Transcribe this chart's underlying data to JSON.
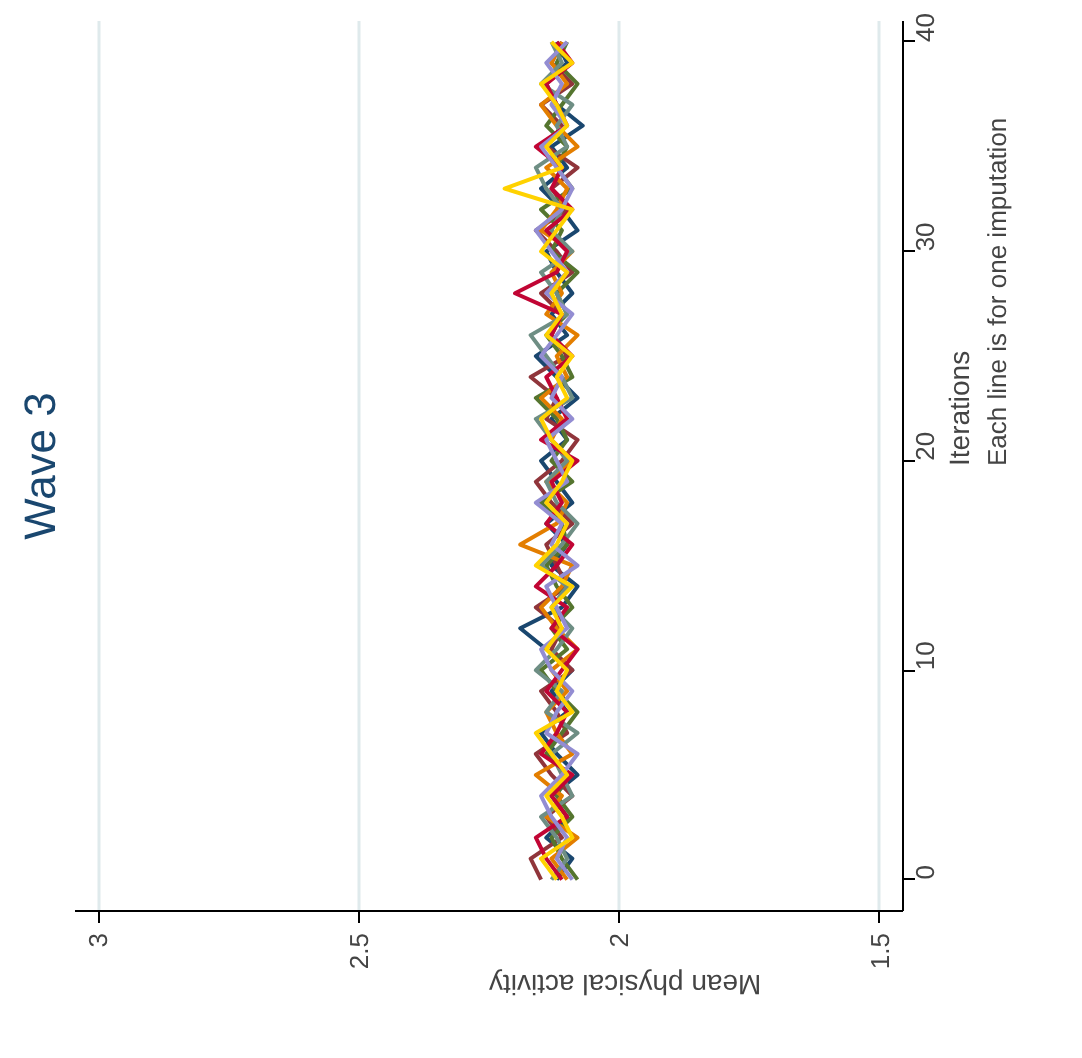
{
  "chart_data": {
    "type": "line",
    "title": "Wave 3",
    "xlabel": "Mean physical activity",
    "ylabel": "Iterations",
    "annotations": [
      "Each line is for one imputation"
    ],
    "xlim": [
      3.045,
      1.455
    ],
    "ylim": [
      -1.5,
      41
    ],
    "xticks": [
      3,
      2.5,
      2,
      1.5
    ],
    "yticks": [
      0,
      10,
      20,
      30,
      40
    ],
    "grid": "x",
    "series": [
      {
        "color": "#1a476f",
        "x": [
          2.12,
          2.09,
          2.14,
          2.1,
          2.13,
          2.08,
          2.12,
          2.15,
          2.1,
          2.13,
          2.09,
          2.14,
          2.19,
          2.11,
          2.08,
          2.13,
          2.1,
          2.14,
          2.09,
          2.12,
          2.15,
          2.1,
          2.13,
          2.08,
          2.12,
          2.16,
          2.1,
          2.13,
          2.09,
          2.12,
          2.14,
          2.08,
          2.11,
          2.15,
          2.1,
          2.13,
          2.07,
          2.12,
          2.14,
          2.1,
          2.12
        ],
        "values": [
          0,
          1,
          2,
          3,
          4,
          5,
          6,
          7,
          8,
          9,
          10,
          11,
          12,
          13,
          14,
          15,
          16,
          17,
          18,
          19,
          20,
          21,
          22,
          23,
          24,
          25,
          26,
          27,
          28,
          29,
          30,
          31,
          32,
          33,
          34,
          35,
          36,
          37,
          38,
          39,
          40
        ]
      },
      {
        "color": "#90353b",
        "x": [
          2.15,
          2.17,
          2.11,
          2.14,
          2.09,
          2.13,
          2.16,
          2.1,
          2.12,
          2.15,
          2.09,
          2.13,
          2.11,
          2.16,
          2.1,
          2.12,
          2.14,
          2.09,
          2.13,
          2.16,
          2.11,
          2.08,
          2.14,
          2.12,
          2.17,
          2.1,
          2.13,
          2.11,
          2.15,
          2.09,
          2.12,
          2.16,
          2.1,
          2.13,
          2.08,
          2.14,
          2.11,
          2.15,
          2.09,
          2.13,
          2.11
        ],
        "values": [
          0,
          1,
          2,
          3,
          4,
          5,
          6,
          7,
          8,
          9,
          10,
          11,
          12,
          13,
          14,
          15,
          16,
          17,
          18,
          19,
          20,
          21,
          22,
          23,
          24,
          25,
          26,
          27,
          28,
          29,
          30,
          31,
          32,
          33,
          34,
          35,
          36,
          37,
          38,
          39,
          40
        ]
      },
      {
        "color": "#55752f",
        "x": [
          2.08,
          2.11,
          2.13,
          2.09,
          2.12,
          2.1,
          2.14,
          2.11,
          2.08,
          2.12,
          2.15,
          2.1,
          2.13,
          2.09,
          2.12,
          2.14,
          2.1,
          2.11,
          2.15,
          2.09,
          2.13,
          2.1,
          2.12,
          2.16,
          2.09,
          2.11,
          2.14,
          2.1,
          2.12,
          2.08,
          2.13,
          2.11,
          2.15,
          2.09,
          2.12,
          2.1,
          2.14,
          2.11,
          2.08,
          2.12,
          2.1
        ],
        "values": [
          0,
          1,
          2,
          3,
          4,
          5,
          6,
          7,
          8,
          9,
          10,
          11,
          12,
          13,
          14,
          15,
          16,
          17,
          18,
          19,
          20,
          21,
          22,
          23,
          24,
          25,
          26,
          27,
          28,
          29,
          30,
          31,
          32,
          33,
          34,
          35,
          36,
          37,
          38,
          39,
          40
        ]
      },
      {
        "color": "#e37e00",
        "x": [
          2.1,
          2.13,
          2.08,
          2.14,
          2.11,
          2.16,
          2.09,
          2.12,
          2.14,
          2.1,
          2.13,
          2.08,
          2.12,
          2.15,
          2.11,
          2.09,
          2.19,
          2.12,
          2.1,
          2.14,
          2.09,
          2.13,
          2.11,
          2.15,
          2.1,
          2.12,
          2.08,
          2.14,
          2.11,
          2.13,
          2.09,
          2.15,
          2.12,
          2.1,
          2.14,
          2.08,
          2.12,
          2.15,
          2.1,
          2.13,
          2.11
        ],
        "values": [
          0,
          1,
          2,
          3,
          4,
          5,
          6,
          7,
          8,
          9,
          10,
          11,
          12,
          13,
          14,
          15,
          16,
          17,
          18,
          19,
          20,
          21,
          22,
          23,
          24,
          25,
          26,
          27,
          28,
          29,
          30,
          31,
          32,
          33,
          34,
          35,
          36,
          37,
          38,
          39,
          40
        ]
      },
      {
        "color": "#6e8e84",
        "x": [
          2.13,
          2.1,
          2.12,
          2.15,
          2.09,
          2.11,
          2.13,
          2.08,
          2.14,
          2.11,
          2.16,
          2.12,
          2.09,
          2.13,
          2.1,
          2.15,
          2.11,
          2.08,
          2.12,
          2.14,
          2.1,
          2.13,
          2.16,
          2.09,
          2.11,
          2.14,
          2.17,
          2.1,
          2.12,
          2.15,
          2.09,
          2.13,
          2.11,
          2.14,
          2.16,
          2.1,
          2.12,
          2.09,
          2.15,
          2.11,
          2.13
        ],
        "values": [
          0,
          1,
          2,
          3,
          4,
          5,
          6,
          7,
          8,
          9,
          10,
          11,
          12,
          13,
          14,
          15,
          16,
          17,
          18,
          19,
          20,
          21,
          22,
          23,
          24,
          25,
          26,
          27,
          28,
          29,
          30,
          31,
          32,
          33,
          34,
          35,
          36,
          37,
          38,
          39,
          40
        ]
      },
      {
        "color": "#c10534",
        "x": [
          2.11,
          2.14,
          2.16,
          2.1,
          2.13,
          2.09,
          2.15,
          2.12,
          2.1,
          2.14,
          2.11,
          2.08,
          2.13,
          2.1,
          2.16,
          2.12,
          2.09,
          2.14,
          2.11,
          2.13,
          2.08,
          2.15,
          2.1,
          2.12,
          2.14,
          2.09,
          2.13,
          2.11,
          2.2,
          2.12,
          2.1,
          2.14,
          2.09,
          2.13,
          2.11,
          2.16,
          2.1,
          2.12,
          2.14,
          2.09,
          2.12
        ],
        "values": [
          0,
          1,
          2,
          3,
          4,
          5,
          6,
          7,
          8,
          9,
          10,
          11,
          12,
          13,
          14,
          15,
          16,
          17,
          18,
          19,
          20,
          21,
          22,
          23,
          24,
          25,
          26,
          27,
          28,
          29,
          30,
          31,
          32,
          33,
          34,
          35,
          36,
          37,
          38,
          39,
          40
        ]
      },
      {
        "color": "#938dd2",
        "x": [
          2.09,
          2.12,
          2.1,
          2.13,
          2.15,
          2.11,
          2.08,
          2.14,
          2.12,
          2.09,
          2.13,
          2.15,
          2.1,
          2.12,
          2.14,
          2.08,
          2.13,
          2.11,
          2.16,
          2.1,
          2.12,
          2.14,
          2.09,
          2.13,
          2.11,
          2.15,
          2.12,
          2.09,
          2.14,
          2.1,
          2.13,
          2.16,
          2.11,
          2.09,
          2.12,
          2.15,
          2.1,
          2.13,
          2.11,
          2.14,
          2.1
        ],
        "values": [
          0,
          1,
          2,
          3,
          4,
          5,
          6,
          7,
          8,
          9,
          10,
          11,
          12,
          13,
          14,
          15,
          16,
          17,
          18,
          19,
          20,
          21,
          22,
          23,
          24,
          25,
          26,
          27,
          28,
          29,
          30,
          31,
          32,
          33,
          34,
          35,
          36,
          37,
          38,
          39,
          40
        ]
      },
      {
        "color": "#ffd200",
        "x": [
          2.12,
          2.15,
          2.09,
          2.11,
          2.14,
          2.1,
          2.13,
          2.16,
          2.09,
          2.12,
          2.1,
          2.14,
          2.11,
          2.13,
          2.09,
          2.16,
          2.12,
          2.1,
          2.14,
          2.11,
          2.09,
          2.13,
          2.15,
          2.1,
          2.12,
          2.09,
          2.14,
          2.11,
          2.13,
          2.1,
          2.15,
          2.12,
          2.09,
          2.22,
          2.11,
          2.14,
          2.1,
          2.12,
          2.15,
          2.09,
          2.13
        ],
        "values": [
          0,
          1,
          2,
          3,
          4,
          5,
          6,
          7,
          8,
          9,
          10,
          11,
          12,
          13,
          14,
          15,
          16,
          17,
          18,
          19,
          20,
          21,
          22,
          23,
          24,
          25,
          26,
          27,
          28,
          29,
          30,
          31,
          32,
          33,
          34,
          35,
          36,
          37,
          38,
          39,
          40
        ]
      }
    ]
  }
}
